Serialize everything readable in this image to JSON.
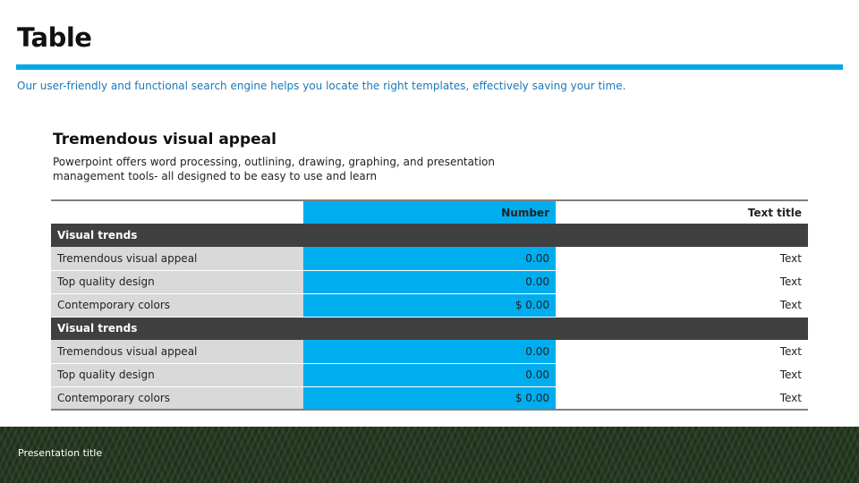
{
  "slide": {
    "title": "Table",
    "subtitle": "Our user-friendly and functional search engine helps you locate the right templates, effectively saving your time."
  },
  "section": {
    "heading": "Tremendous visual appeal",
    "body": "Powerpoint offers word processing, outlining, drawing, graphing, and presentation management tools- all designed to be easy to use and learn"
  },
  "table": {
    "headers": [
      "",
      "Number",
      "Text title"
    ],
    "groups": [
      {
        "label": "Visual trends",
        "rows": [
          [
            "Tremendous visual appeal",
            "0.00",
            "Text"
          ],
          [
            "Top quality design",
            "0.00",
            "Text"
          ],
          [
            "Contemporary colors",
            "$ 0.00",
            "Text"
          ]
        ]
      },
      {
        "label": "Visual trends",
        "rows": [
          [
            "Tremendous visual appeal",
            "0.00",
            "Text"
          ],
          [
            "Top quality design",
            "0.00",
            "Text"
          ],
          [
            "Contemporary colors",
            "$ 0.00",
            "Text"
          ]
        ]
      }
    ]
  },
  "footer": {
    "label": "Presentation title"
  },
  "colors": {
    "accent": "#00aeef",
    "accent_rule": "#00a8e8",
    "subtitle": "#1a78b8",
    "group_row": "#404040",
    "label_cell": "#d9d9d9"
  }
}
